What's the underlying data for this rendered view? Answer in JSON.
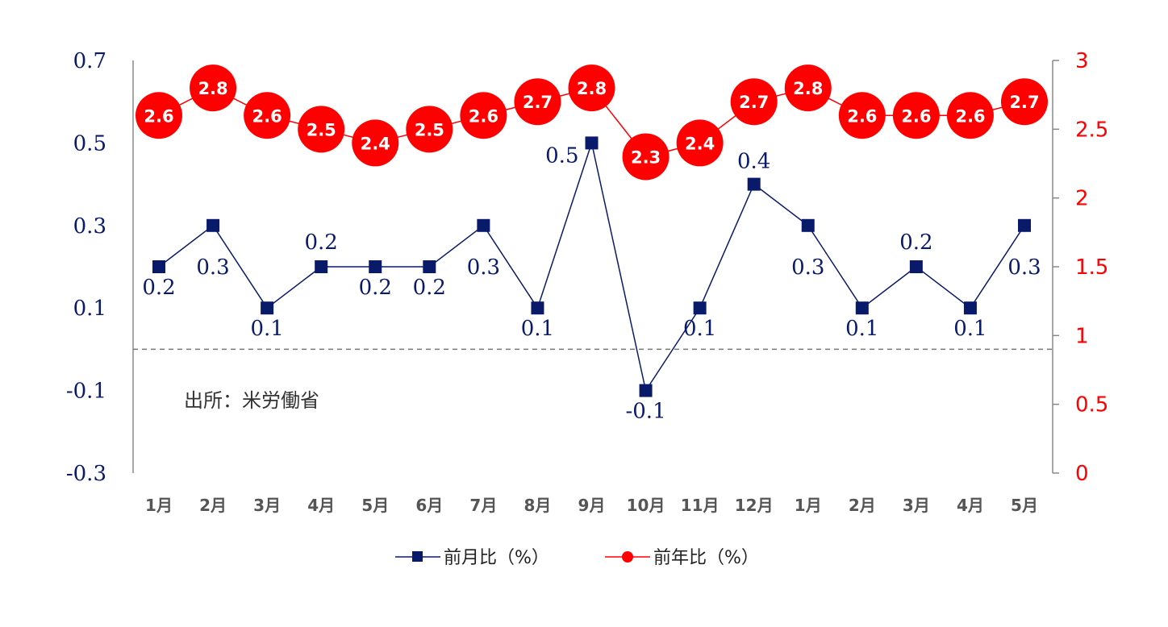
{
  "chart_data": {
    "type": "line",
    "categories": [
      "1月",
      "2月",
      "3月",
      "4月",
      "5月",
      "6月",
      "7月",
      "8月",
      "9月",
      "10月",
      "11月",
      "12月",
      "1月",
      "2月",
      "3月",
      "4月",
      "5月"
    ],
    "series": [
      {
        "name": "前月比（%）",
        "axis": "left",
        "color": "#0a1a6b",
        "marker": "square",
        "values": [
          0.2,
          0.3,
          0.1,
          0.2,
          0.2,
          0.2,
          0.3,
          0.1,
          0.5,
          -0.1,
          0.1,
          0.4,
          0.3,
          0.1,
          0.2,
          0.1,
          0.3
        ],
        "labels": [
          "0.2",
          "0.3",
          "0.1",
          "0.2",
          "0.2",
          "0.2",
          "0.3",
          "0.1",
          "0.5",
          "-0.1",
          "0.1",
          "0.4",
          "0.3",
          "0.1",
          "0.2",
          "0.1",
          "0.3"
        ]
      },
      {
        "name": "前年比（%）",
        "axis": "right",
        "color": "#ff0000",
        "marker": "circle",
        "values": [
          2.6,
          2.8,
          2.6,
          2.5,
          2.4,
          2.5,
          2.6,
          2.7,
          2.8,
          2.3,
          2.4,
          2.7,
          2.8,
          2.6,
          2.6,
          2.6,
          2.7
        ],
        "labels": [
          "2.6",
          "2.8",
          "2.6",
          "2.5",
          "2.4",
          "2.5",
          "2.6",
          "2.7",
          "2.8",
          "2.3",
          "2.4",
          "2.7",
          "2.8",
          "2.6",
          "2.6",
          "2.6",
          "2.7"
        ]
      }
    ],
    "y_left": {
      "min": -0.3,
      "max": 0.7,
      "ticks": [
        "0.7",
        "0.5",
        "0.3",
        "0.1",
        "-0.1",
        "-0.3"
      ],
      "tick_values": [
        0.7,
        0.5,
        0.3,
        0.1,
        -0.1,
        -0.3
      ]
    },
    "y_right": {
      "min": 0,
      "max": 3,
      "ticks": [
        "3",
        "2.5",
        "2",
        "1.5",
        "1",
        "0.5",
        "0"
      ],
      "tick_values": [
        3,
        2.5,
        2,
        1.5,
        1,
        0.5,
        0
      ]
    },
    "reference_line": {
      "axis": "left",
      "value": 0
    },
    "annotation": "出所：米労働省",
    "legend_position": "bottom-center"
  }
}
